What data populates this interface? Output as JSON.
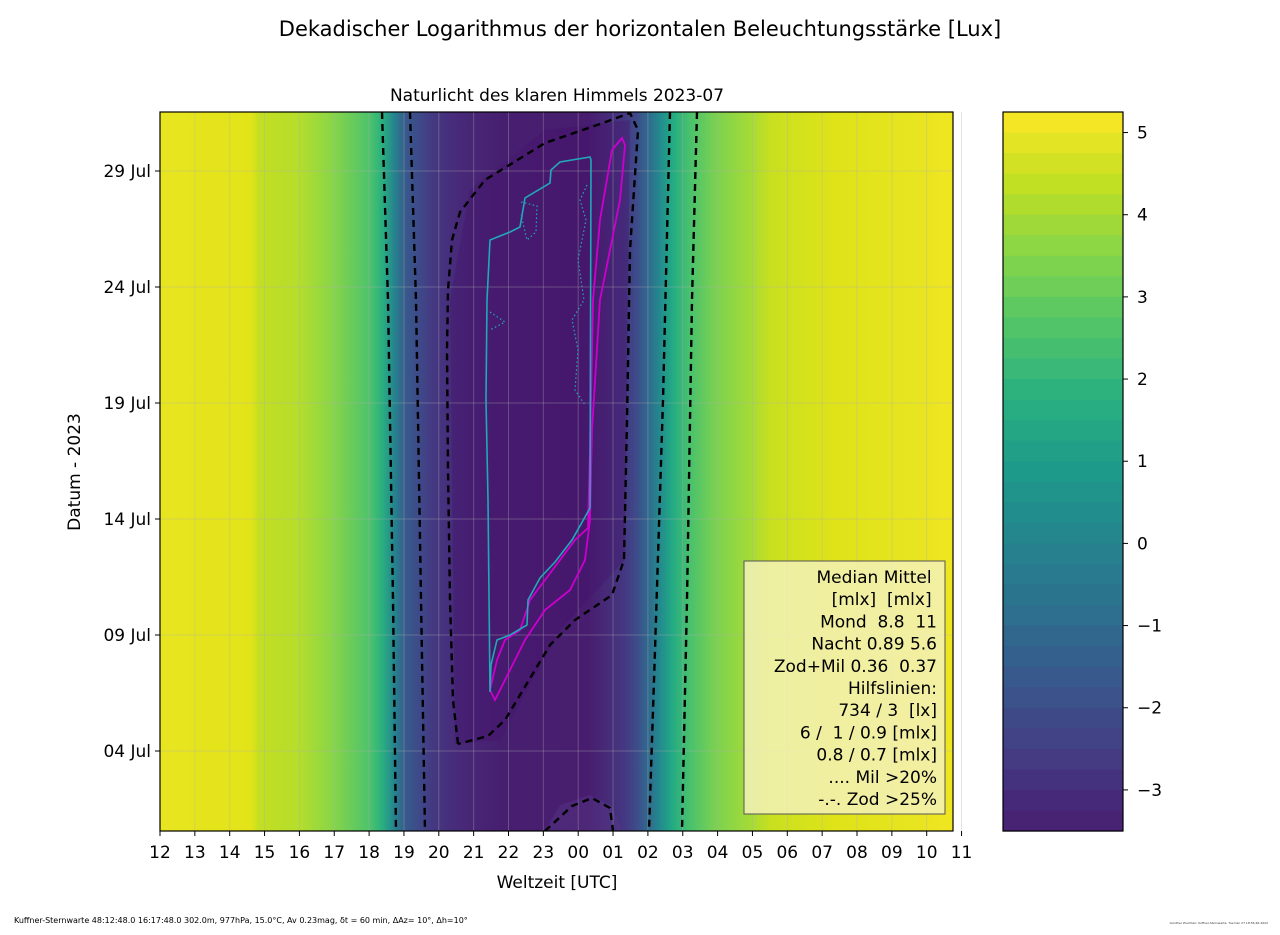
{
  "chart_data": {
    "type": "heatmap",
    "suptitle": "Dekadischer Logarithmus der horizontalen Beleuchtungsstärke [Lux]",
    "title": "Naturlicht des klaren Himmels 2023-07",
    "xlabel": "Weltzeit [UTC]",
    "ylabel": "Datum - 2023",
    "x_ticks": [
      "12",
      "13",
      "14",
      "15",
      "16",
      "17",
      "18",
      "19",
      "20",
      "21",
      "22",
      "23",
      "00",
      "01",
      "02",
      "03",
      "04",
      "05",
      "06",
      "07",
      "08",
      "09",
      "10",
      "11"
    ],
    "y_ticks": [
      "04 Jul",
      "09 Jul",
      "14 Jul",
      "19 Jul",
      "24 Jul",
      "29 Jul"
    ],
    "colorbar": {
      "ticks": [
        "5",
        "4",
        "3",
        "2",
        "1",
        "0",
        "−1",
        "−2",
        "−3"
      ],
      "tick_values": [
        5,
        4,
        3,
        2,
        1,
        0,
        -1,
        -2,
        -3
      ],
      "range": [
        -3.5,
        5.25
      ],
      "colormap": "viridis"
    },
    "grid": true,
    "legend_box": {
      "placement": "lower-right",
      "lines": [
        "Median Mittel ",
        "[mlx]  [mlx] ",
        "Mond  8.8  11",
        "Nacht 0.89 5.6",
        "Zod+Mil 0.36  0.37",
        "Hilfslinien:",
        "734 / 3  [lx]",
        "6 /  1 / 0.9 [mlx]",
        "0.8 / 0.7 [mlx]",
        ".... Mil >20%",
        "-.-. Zod >25%"
      ]
    },
    "colors": {
      "day": "#e8e520",
      "night": "#482173",
      "contour_dashed": "#000000",
      "contour_magenta": "#cc00cc",
      "contour_cyan": "#22a8b8"
    }
  },
  "footer": {
    "left": "Kuffner-Sternwarte 48:12:48.0 16:17:48.0 302.0m,  977hPa, 15.0°C, Av 0.23mag, δt = 60 min, ΔAz= 10°, Δh=10°",
    "right": "Günther Wuchterl, Kuffner-Sternwarte, Tue Dec 27 18:56:46 2022"
  }
}
